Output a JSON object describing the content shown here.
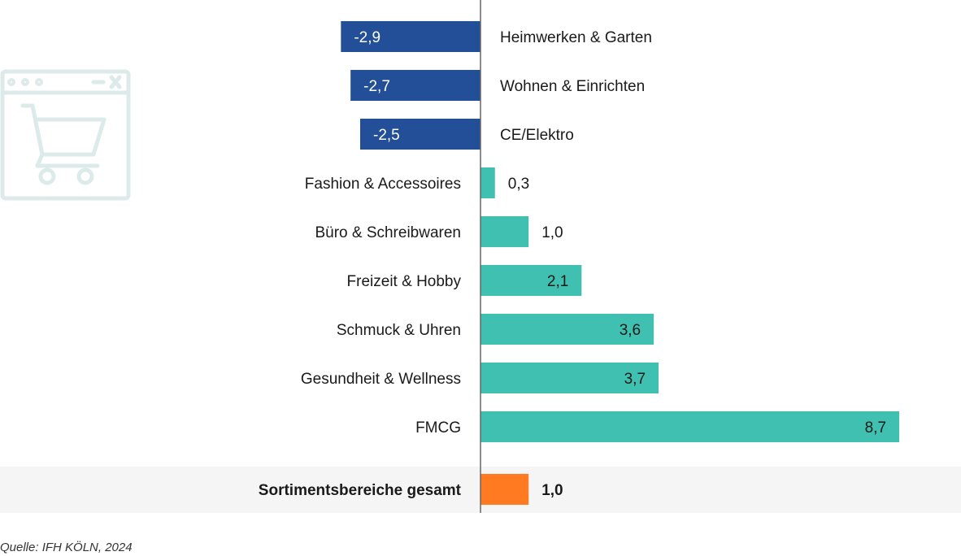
{
  "chart_data": {
    "type": "bar",
    "orientation": "horizontal",
    "categories": [
      "Heimwerken & Garten",
      "Wohnen & Einrichten",
      "CE/Elektro",
      "Fashion & Accessoires",
      "Büro & Schreibwaren",
      "Freizeit & Hobby",
      "Schmuck & Uhren",
      "Gesundheit & Wellness",
      "FMCG"
    ],
    "values": [
      -2.9,
      -2.7,
      -2.5,
      0.3,
      1.0,
      2.1,
      3.6,
      3.7,
      8.7
    ],
    "value_labels": [
      "-2,9",
      "-2,7",
      "-2,5",
      "0,3",
      "1,0",
      "2,1",
      "3,6",
      "3,7",
      "8,7"
    ],
    "total": {
      "label": "Sortimentsbereiche gesamt",
      "value": 1.0,
      "value_label": "1,0"
    },
    "xlim": [
      -10,
      10
    ],
    "grid": false,
    "legend": "none",
    "colors": {
      "negative": "#234f99",
      "positive": "#40c0b0",
      "total": "#ff7a21",
      "axis": "#666666",
      "total_band": "#f5f5f5",
      "icon": "#dcebea"
    }
  },
  "source": "Quelle: IFH KÖLN, 2024",
  "icon": "shopping-cart-browser-icon"
}
